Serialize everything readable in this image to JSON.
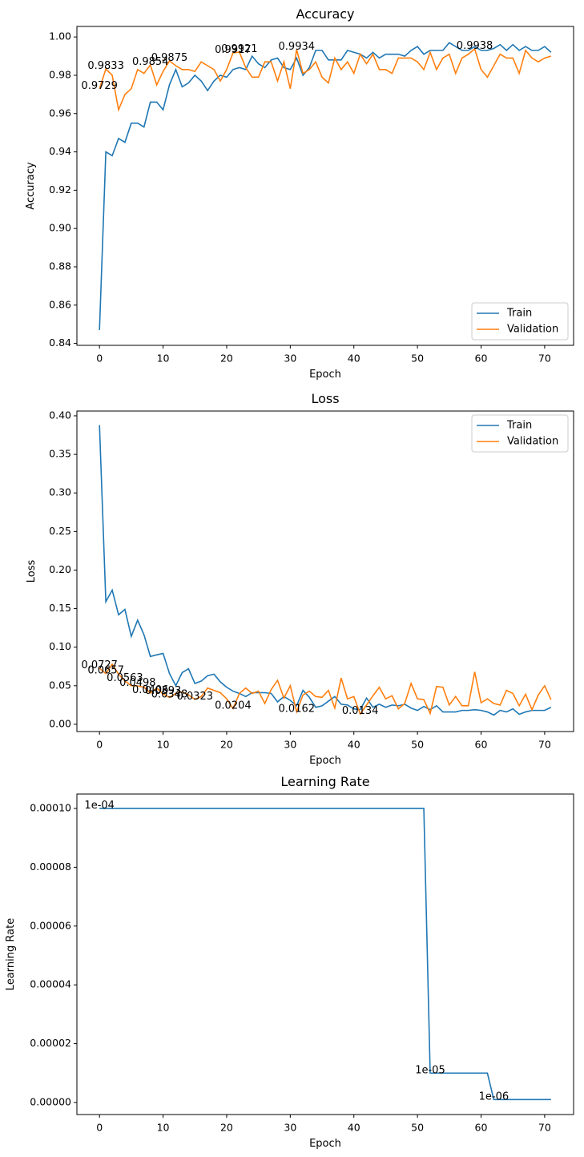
{
  "chart_data": [
    {
      "type": "line",
      "title": "Accuracy",
      "x_label": "Epoch",
      "y_label": "Accuracy",
      "x": [
        0,
        1,
        2,
        3,
        4,
        5,
        6,
        7,
        8,
        9,
        10,
        11,
        12,
        13,
        14,
        15,
        16,
        17,
        18,
        19,
        20,
        21,
        22,
        23,
        24,
        25,
        26,
        27,
        28,
        29,
        30,
        31,
        32,
        33,
        34,
        35,
        36,
        37,
        38,
        39,
        40,
        41,
        42,
        43,
        44,
        45,
        46,
        47,
        48,
        49,
        50,
        51,
        52,
        53,
        54,
        55,
        56,
        57,
        58,
        59,
        60,
        61,
        62,
        63,
        64,
        65,
        66,
        67,
        68,
        69,
        70,
        71
      ],
      "series": [
        {
          "name": "Train",
          "color": "#1f77b4",
          "values": [
            0.847,
            0.94,
            0.938,
            0.947,
            0.945,
            0.955,
            0.955,
            0.953,
            0.966,
            0.966,
            0.962,
            0.975,
            0.983,
            0.974,
            0.976,
            0.98,
            0.977,
            0.972,
            0.977,
            0.98,
            0.979,
            0.983,
            0.984,
            0.983,
            0.99,
            0.986,
            0.984,
            0.988,
            0.989,
            0.984,
            0.983,
            0.989,
            0.98,
            0.984,
            0.993,
            0.993,
            0.988,
            0.988,
            0.988,
            0.993,
            0.992,
            0.991,
            0.989,
            0.992,
            0.989,
            0.991,
            0.991,
            0.991,
            0.99,
            0.993,
            0.995,
            0.991,
            0.993,
            0.993,
            0.993,
            0.997,
            0.995,
            0.993,
            0.993,
            0.995,
            0.993,
            0.993,
            0.994,
            0.996,
            0.993,
            0.996,
            0.993,
            0.995,
            0.993,
            0.993,
            0.995,
            0.992
          ]
        },
        {
          "name": "Validation",
          "color": "#ff7f0e",
          "values": [
            0.9729,
            0.9833,
            0.98,
            0.962,
            0.97,
            0.973,
            0.983,
            0.981,
            0.9854,
            0.975,
            0.982,
            0.9875,
            0.985,
            0.983,
            0.983,
            0.982,
            0.987,
            0.985,
            0.983,
            0.977,
            0.983,
            0.9917,
            0.9921,
            0.984,
            0.979,
            0.979,
            0.987,
            0.987,
            0.977,
            0.987,
            0.973,
            0.9934,
            0.981,
            0.983,
            0.987,
            0.979,
            0.976,
            0.989,
            0.983,
            0.987,
            0.981,
            0.991,
            0.986,
            0.991,
            0.983,
            0.983,
            0.981,
            0.989,
            0.989,
            0.989,
            0.987,
            0.983,
            0.992,
            0.983,
            0.989,
            0.991,
            0.981,
            0.989,
            0.991,
            0.9938,
            0.983,
            0.979,
            0.985,
            0.991,
            0.989,
            0.989,
            0.981,
            0.993,
            0.989,
            0.987,
            0.989,
            0.99
          ]
        }
      ],
      "xlim": [
        -3.55,
        74.55
      ],
      "ylim": [
        0.839,
        1.0055
      ],
      "xticks": [
        0,
        10,
        20,
        30,
        40,
        50,
        60,
        70
      ],
      "yticks": [
        0.84,
        0.86,
        0.88,
        {
          "value": 0.9,
          "label": "0.90"
        },
        0.92,
        0.94,
        0.96,
        0.98,
        {
          "value": 1,
          "label": "1.00"
        }
      ],
      "legend": "lower right",
      "annotations": [
        {
          "x": 0,
          "y": 0.9729,
          "text": "0.9729"
        },
        {
          "x": 1,
          "y": 0.9833,
          "text": "0.9833"
        },
        {
          "x": 8,
          "y": 0.9854,
          "text": "0.9854"
        },
        {
          "x": 11,
          "y": 0.9875,
          "text": "0.9875"
        },
        {
          "x": 21,
          "y": 0.9917,
          "text": "0.9917"
        },
        {
          "x": 22,
          "y": 0.9921,
          "text": "0.9921"
        },
        {
          "x": 31,
          "y": 0.9934,
          "text": "0.9934"
        },
        {
          "x": 59,
          "y": 0.9938,
          "text": "0.9938"
        }
      ]
    },
    {
      "type": "line",
      "title": "Loss",
      "x_label": "Epoch",
      "y_label": "Loss",
      "x": [
        0,
        1,
        2,
        3,
        4,
        5,
        6,
        7,
        8,
        9,
        10,
        11,
        12,
        13,
        14,
        15,
        16,
        17,
        18,
        19,
        20,
        21,
        22,
        23,
        24,
        25,
        26,
        27,
        28,
        29,
        30,
        31,
        32,
        33,
        34,
        35,
        36,
        37,
        38,
        39,
        40,
        41,
        42,
        43,
        44,
        45,
        46,
        47,
        48,
        49,
        50,
        51,
        52,
        53,
        54,
        55,
        56,
        57,
        58,
        59,
        60,
        61,
        62,
        63,
        64,
        65,
        66,
        67,
        68,
        69,
        70,
        71
      ],
      "series": [
        {
          "name": "Train",
          "color": "#1f77b4",
          "values": [
            0.388,
            0.159,
            0.174,
            0.142,
            0.149,
            0.114,
            0.135,
            0.116,
            0.088,
            0.09,
            0.092,
            0.066,
            0.05,
            0.067,
            0.072,
            0.053,
            0.056,
            0.063,
            0.065,
            0.055,
            0.048,
            0.043,
            0.04,
            0.036,
            0.041,
            0.041,
            0.041,
            0.04,
            0.029,
            0.036,
            0.031,
            0.024,
            0.044,
            0.035,
            0.022,
            0.024,
            0.03,
            0.036,
            0.026,
            0.025,
            0.02,
            0.019,
            0.034,
            0.022,
            0.026,
            0.022,
            0.025,
            0.024,
            0.026,
            0.021,
            0.018,
            0.023,
            0.019,
            0.024,
            0.016,
            0.016,
            0.016,
            0.018,
            0.018,
            0.019,
            0.018,
            0.016,
            0.012,
            0.018,
            0.016,
            0.02,
            0.013,
            0.016,
            0.018,
            0.018,
            0.018,
            0.022
          ]
        },
        {
          "name": "Validation",
          "color": "#ff7f0e",
          "values": [
            0.0727,
            0.0657,
            0.078,
            0.065,
            0.0563,
            0.05,
            0.0498,
            0.048,
            0.0406,
            0.047,
            0.0393,
            0.0348,
            0.04,
            0.042,
            0.038,
            0.0323,
            0.036,
            0.047,
            0.044,
            0.041,
            0.033,
            0.0204,
            0.04,
            0.047,
            0.04,
            0.043,
            0.027,
            0.045,
            0.057,
            0.034,
            0.05,
            0.0162,
            0.038,
            0.043,
            0.036,
            0.035,
            0.044,
            0.021,
            0.06,
            0.033,
            0.036,
            0.0134,
            0.025,
            0.037,
            0.048,
            0.033,
            0.037,
            0.02,
            0.027,
            0.053,
            0.033,
            0.032,
            0.014,
            0.049,
            0.048,
            0.025,
            0.036,
            0.024,
            0.024,
            0.068,
            0.028,
            0.033,
            0.027,
            0.025,
            0.044,
            0.04,
            0.024,
            0.039,
            0.019,
            0.038,
            0.05,
            0.032
          ]
        }
      ],
      "xlim": [
        -3.55,
        74.55
      ],
      "ylim": [
        -0.0094,
        0.4062
      ],
      "xticks": [
        0,
        10,
        20,
        30,
        40,
        50,
        60,
        70
      ],
      "yticks": [
        {
          "value": 0,
          "label": "0.00"
        },
        0.05,
        {
          "value": 0.1,
          "label": "0.10"
        },
        0.15,
        {
          "value": 0.2,
          "label": "0.20"
        },
        0.25,
        {
          "value": 0.3,
          "label": "0.30"
        },
        0.35,
        {
          "value": 0.4,
          "label": "0.40"
        }
      ],
      "legend": "upper right",
      "annotations": [
        {
          "x": 0,
          "y": 0.0727,
          "text": "0.0727"
        },
        {
          "x": 1,
          "y": 0.0657,
          "text": "0.0657"
        },
        {
          "x": 4,
          "y": 0.0563,
          "text": "0.0563"
        },
        {
          "x": 6,
          "y": 0.0498,
          "text": "0.0498"
        },
        {
          "x": 8,
          "y": 0.0406,
          "text": "0.0406"
        },
        {
          "x": 10,
          "y": 0.0393,
          "text": "0.0393"
        },
        {
          "x": 11,
          "y": 0.0348,
          "text": "0.0348"
        },
        {
          "x": 15,
          "y": 0.0323,
          "text": "0.0323"
        },
        {
          "x": 21,
          "y": 0.0204,
          "text": "0.0204"
        },
        {
          "x": 31,
          "y": 0.0162,
          "text": "0.0162"
        },
        {
          "x": 41,
          "y": 0.0134,
          "text": "0.0134"
        }
      ]
    },
    {
      "type": "line",
      "title": "Learning Rate",
      "x_label": "Epoch",
      "y_label": "Learning Rate",
      "x": [
        0,
        1,
        2,
        3,
        4,
        5,
        6,
        7,
        8,
        9,
        10,
        11,
        12,
        13,
        14,
        15,
        16,
        17,
        18,
        19,
        20,
        21,
        22,
        23,
        24,
        25,
        26,
        27,
        28,
        29,
        30,
        31,
        32,
        33,
        34,
        35,
        36,
        37,
        38,
        39,
        40,
        41,
        42,
        43,
        44,
        45,
        46,
        47,
        48,
        49,
        50,
        51,
        52,
        53,
        54,
        55,
        56,
        57,
        58,
        59,
        60,
        61,
        62,
        63,
        64,
        65,
        66,
        67,
        68,
        69,
        70,
        71
      ],
      "series": [
        {
          "color": "#1f77b4",
          "values": [
            0.0001,
            0.0001,
            0.0001,
            0.0001,
            0.0001,
            0.0001,
            0.0001,
            0.0001,
            0.0001,
            0.0001,
            0.0001,
            0.0001,
            0.0001,
            0.0001,
            0.0001,
            0.0001,
            0.0001,
            0.0001,
            0.0001,
            0.0001,
            0.0001,
            0.0001,
            0.0001,
            0.0001,
            0.0001,
            0.0001,
            0.0001,
            0.0001,
            0.0001,
            0.0001,
            0.0001,
            0.0001,
            0.0001,
            0.0001,
            0.0001,
            0.0001,
            0.0001,
            0.0001,
            0.0001,
            0.0001,
            0.0001,
            0.0001,
            0.0001,
            0.0001,
            0.0001,
            0.0001,
            0.0001,
            0.0001,
            0.0001,
            0.0001,
            0.0001,
            0.0001,
            1e-05,
            1e-05,
            1e-05,
            1e-05,
            1e-05,
            1e-05,
            1e-05,
            1e-05,
            1e-05,
            1e-05,
            1e-06,
            1e-06,
            1e-06,
            1e-06,
            1e-06,
            1e-06,
            1e-06,
            1e-06,
            1e-06,
            1e-06
          ]
        }
      ],
      "xlim": [
        -3.55,
        74.55
      ],
      "ylim": [
        -4.1e-06,
        0.0001049
      ],
      "xticks": [
        0,
        10,
        20,
        30,
        40,
        50,
        60,
        70
      ],
      "yticks": [
        {
          "value": 0,
          "label": "0.00000"
        },
        {
          "value": 2e-05,
          "label": "0.00002"
        },
        {
          "value": 4e-05,
          "label": "0.00004"
        },
        {
          "value": 6e-05,
          "label": "0.00006"
        },
        {
          "value": 8e-05,
          "label": "0.00008"
        },
        {
          "value": 0.0001,
          "label": "0.00010"
        }
      ],
      "annotations": [
        {
          "x": 0,
          "y": 0.0001,
          "text": "1e-04"
        },
        {
          "x": 52,
          "y": 1e-05,
          "text": "1e-05"
        },
        {
          "x": 62,
          "y": 1e-06,
          "text": "1e-06"
        }
      ]
    }
  ]
}
